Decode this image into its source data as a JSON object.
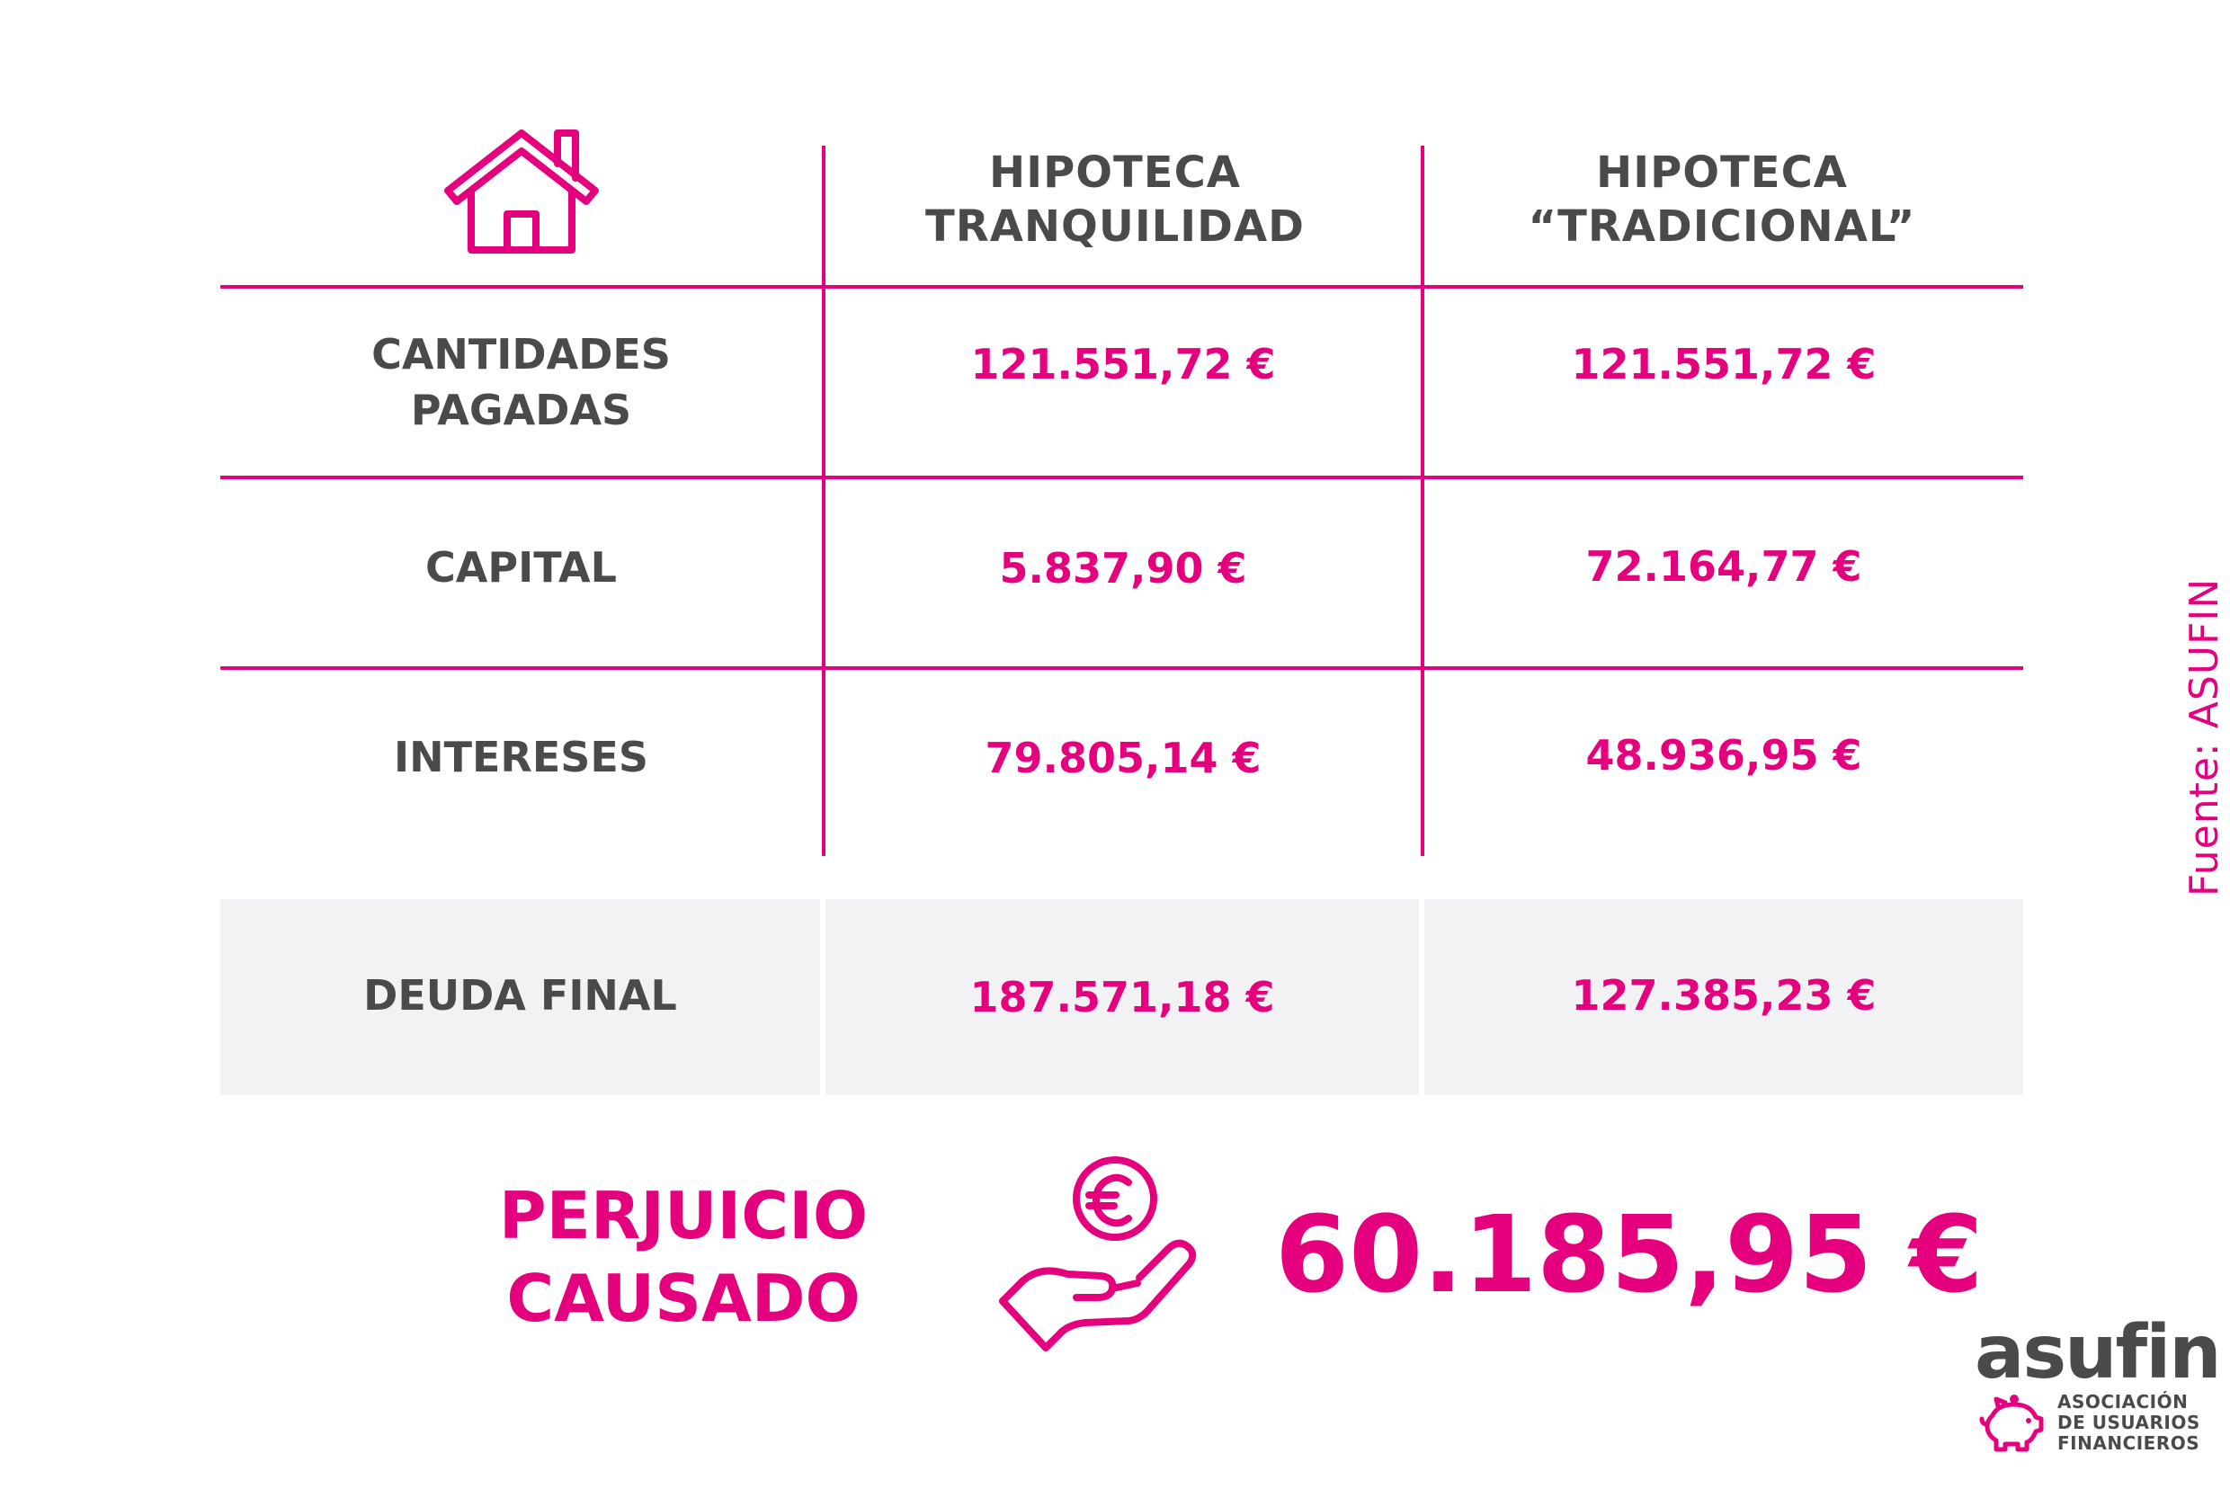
{
  "header": {
    "house_icon": "house-icon",
    "col1": [
      "HIPOTECA",
      "TRANQUILIDAD"
    ],
    "col2": [
      "HIPOTECA",
      "“TRADICIONAL”"
    ]
  },
  "rows": [
    {
      "label": [
        "CANTIDADES",
        "PAGADAS"
      ],
      "tranquilidad": "121.551,72 €",
      "tradicional": "121.551,72 €"
    },
    {
      "label": [
        "CAPITAL"
      ],
      "tranquilidad": "5.837,90 €",
      "tradicional": "72.164,77 €"
    },
    {
      "label": [
        "INTERESES"
      ],
      "tranquilidad": "79.805,14 €",
      "tradicional": "48.936,95 €"
    }
  ],
  "final_row": {
    "label": "DEUDA FINAL",
    "tranquilidad": "187.571,18 €",
    "tradicional": "127.385,23 €"
  },
  "perjuicio": {
    "line1": "PERJUICIO",
    "line2": "CAUSADO",
    "icon": "hand-euro-icon",
    "value": "60.185,95 €"
  },
  "source": "Fuente: ASUFIN",
  "logo": {
    "word": "asufin",
    "line1": "ASOCIACIÓN",
    "line2": "DE USUARIOS",
    "line3": "FINANCIEROS",
    "icon": "piggy-bank-icon"
  },
  "colors": {
    "accent": "#e5007e",
    "text": "#4a4a4a",
    "grey_row": "#f2f2f4"
  }
}
